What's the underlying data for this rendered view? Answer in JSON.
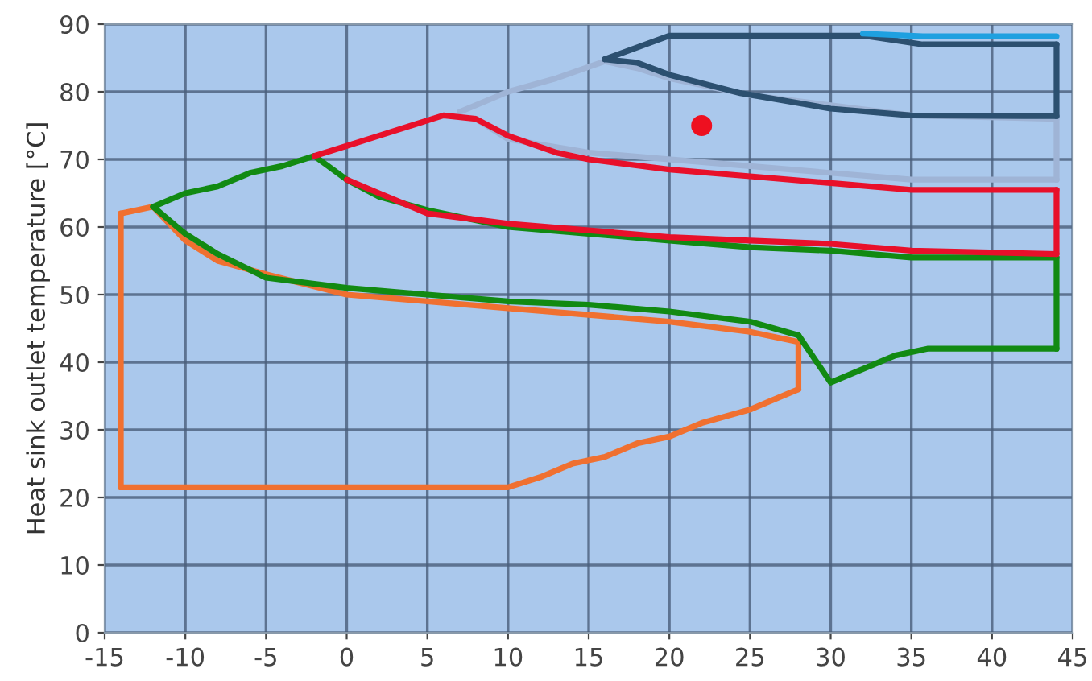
{
  "chart_data": {
    "type": "line",
    "ylabel": "Heat sink outlet temperature [°C]",
    "xlim": [
      -15,
      45
    ],
    "ylim": [
      0,
      90
    ],
    "xticks": [
      -15,
      -10,
      -5,
      0,
      5,
      10,
      15,
      20,
      25,
      30,
      35,
      40,
      45
    ],
    "yticks": [
      0,
      10,
      20,
      30,
      40,
      50,
      60,
      70,
      80,
      90
    ],
    "grid": true,
    "series": [
      {
        "color": "#9fb4d6",
        "x": [
          7,
          10,
          13,
          16
        ],
        "values": [
          77,
          80,
          82,
          84.5
        ]
      },
      {
        "color": "#9fb4d6",
        "x": [
          16,
          18,
          20,
          25,
          30,
          35,
          44
        ],
        "values": [
          84.5,
          83.5,
          82,
          79.5,
          78,
          76.5,
          76
        ]
      },
      {
        "color": "#9fb4d6",
        "x": [
          8,
          10,
          15,
          25,
          35,
          44
        ],
        "values": [
          76,
          73,
          71,
          69,
          67,
          67
        ]
      },
      {
        "color": "#9fb4d6",
        "x": [
          44,
          44
        ],
        "values": [
          67,
          76
        ]
      },
      {
        "color": "#f07030",
        "x": [
          -14,
          -12,
          -10,
          -8,
          -5,
          0,
          5,
          10,
          15,
          20,
          25,
          28
        ],
        "values": [
          62,
          63,
          58,
          55,
          53,
          50,
          49,
          48,
          47,
          46,
          44.5,
          43
        ]
      },
      {
        "color": "#f07030",
        "x": [
          28,
          28
        ],
        "values": [
          36,
          43
        ]
      },
      {
        "color": "#f07030",
        "x": [
          -14,
          10,
          12,
          14,
          16,
          18,
          20,
          22,
          25,
          26,
          28
        ],
        "values": [
          21.5,
          21.5,
          23,
          25,
          26,
          28,
          29,
          31,
          33,
          34,
          36
        ]
      },
      {
        "color": "#f07030",
        "x": [
          -14,
          -14
        ],
        "values": [
          21.5,
          62
        ]
      },
      {
        "color": "#128a12",
        "x": [
          -12,
          -10,
          -8,
          -6,
          -4,
          -2
        ],
        "values": [
          63,
          65,
          66,
          68,
          69,
          70.5
        ]
      },
      {
        "color": "#128a12",
        "x": [
          -2,
          0,
          2,
          5,
          10,
          15,
          20,
          25,
          30,
          35,
          44
        ],
        "values": [
          70.5,
          67,
          64.5,
          62.5,
          60,
          59,
          58,
          57,
          56.5,
          55.5,
          55.5
        ]
      },
      {
        "color": "#128a12",
        "x": [
          44,
          44
        ],
        "values": [
          42,
          55.5
        ]
      },
      {
        "color": "#128a12",
        "x": [
          28,
          30,
          34,
          36,
          44
        ],
        "values": [
          44,
          37,
          41,
          42,
          42
        ]
      },
      {
        "color": "#128a12",
        "x": [
          -12,
          -10,
          -8,
          -5,
          0,
          5,
          10,
          15,
          20,
          25,
          28
        ],
        "values": [
          63,
          59,
          56,
          52.5,
          51,
          50,
          49,
          48.5,
          47.5,
          46,
          44
        ]
      },
      {
        "color": "#e8102a",
        "x": [
          -2,
          0,
          2,
          4,
          6,
          8,
          10,
          13,
          15,
          20,
          25,
          30,
          35,
          44
        ],
        "values": [
          70.5,
          72,
          73.5,
          75,
          76.5,
          76,
          73.5,
          71,
          70,
          68.5,
          67.5,
          66.5,
          65.5,
          65.5
        ]
      },
      {
        "color": "#e8102a",
        "x": [
          44,
          44
        ],
        "values": [
          56,
          65.5
        ]
      },
      {
        "color": "#e8102a",
        "x": [
          0,
          2,
          5,
          10,
          15,
          20,
          25,
          30,
          35,
          44
        ],
        "values": [
          67,
          65,
          62,
          60.5,
          59.5,
          58.5,
          58,
          57.5,
          56.5,
          56
        ]
      },
      {
        "color": "#2c5070",
        "x": [
          16,
          20,
          32,
          35.7,
          44
        ],
        "values": [
          84.8,
          88.3,
          88.3,
          87,
          87
        ]
      },
      {
        "color": "#2c5070",
        "x": [
          44,
          44
        ],
        "values": [
          76.4,
          87
        ]
      },
      {
        "color": "#2c5070",
        "x": [
          16,
          18,
          20,
          24.4,
          30,
          35,
          44
        ],
        "values": [
          84.8,
          84.3,
          82.5,
          79.8,
          77.5,
          76.5,
          76.4
        ]
      },
      {
        "color": "#1ea0e0",
        "x": [
          32,
          35.7,
          44
        ],
        "values": [
          88.6,
          88.2,
          88.2
        ]
      },
      {
        "type": "scatter",
        "color": "#ee1020",
        "x": [
          22
        ],
        "values": [
          75
        ]
      }
    ]
  }
}
